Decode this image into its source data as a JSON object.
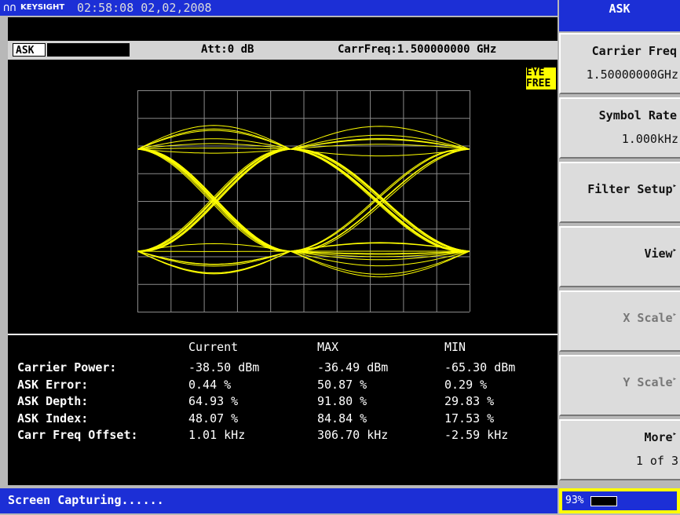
{
  "header": {
    "brand": "KEYSIGHT",
    "datetime": "02:58:08 02,02,2008",
    "menu_title": "ASK"
  },
  "status": {
    "mode": "ASK",
    "attenuation": "Att:0 dB",
    "carrier_freq": "CarrFreq:1.500000000 GHz"
  },
  "indicator": [
    "EYE",
    "FREE"
  ],
  "table": {
    "columns": [
      "Current",
      "MAX",
      "MIN"
    ],
    "rows": [
      {
        "label": "Carrier Power:",
        "cells": [
          "-38.50 dBm",
          "-36.49 dBm",
          "-65.30 dBm"
        ]
      },
      {
        "label": "ASK Error:",
        "cells": [
          "0.44 %",
          "50.87 %",
          "0.29 %"
        ]
      },
      {
        "label": "ASK Depth:",
        "cells": [
          "64.93 %",
          "91.80 %",
          "29.83 %"
        ]
      },
      {
        "label": "ASK Index:",
        "cells": [
          "48.07 %",
          "84.84 %",
          "17.53 %"
        ]
      },
      {
        "label": "Carr Freq Offset:",
        "cells": [
          "1.01 kHz",
          "306.70 kHz",
          "-2.59 kHz"
        ]
      }
    ]
  },
  "softkeys": [
    {
      "label": "Carrier Freq",
      "value": "1.50000000GHz"
    },
    {
      "label": "Symbol Rate",
      "value": "1.000kHz"
    },
    {
      "label": "Filter Setup",
      "submenu": true
    },
    {
      "label": "View",
      "submenu": true
    },
    {
      "label": "X Scale",
      "submenu": true,
      "disabled": true
    },
    {
      "label": "Y Scale",
      "submenu": true,
      "disabled": true
    },
    {
      "label": "More",
      "submenu": true,
      "value": "1 of 3"
    }
  ],
  "footer": {
    "message": "Screen Capturing......",
    "battery": "93%"
  }
}
